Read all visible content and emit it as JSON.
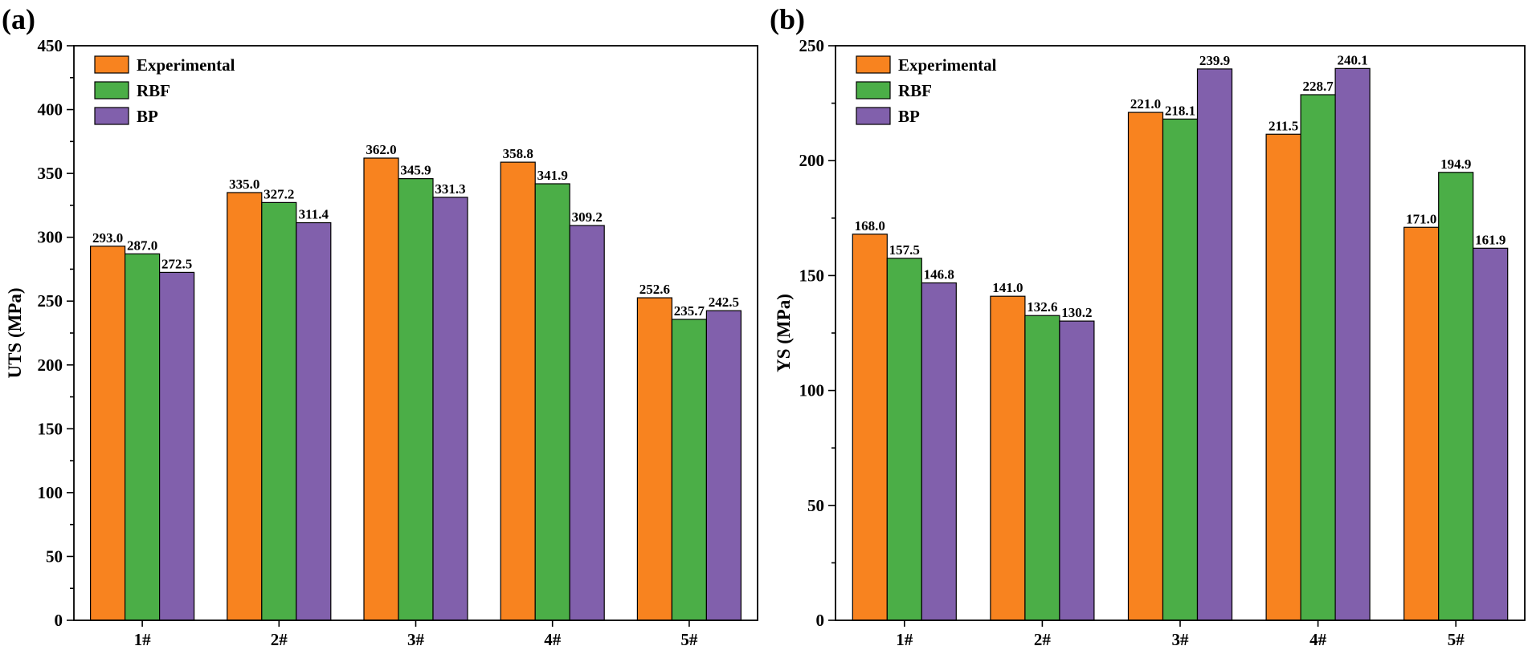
{
  "chart_data": [
    {
      "type": "bar",
      "panel_label": "(a)",
      "ylabel": "UTS (MPa)",
      "xlabel": "",
      "ylim": [
        0,
        450
      ],
      "yticks": [
        "0",
        "50",
        "100",
        "150",
        "200",
        "250",
        "300",
        "350",
        "400",
        "450"
      ],
      "categories": [
        "1#",
        "2#",
        "3#",
        "4#",
        "5#"
      ],
      "legend_position": "top-left",
      "series": [
        {
          "name": "Experimental",
          "color": "#F8831F",
          "values": [
            293.0,
            335.0,
            362.0,
            358.8,
            252.6
          ],
          "labels": [
            "293.0",
            "335.0",
            "362.0",
            "358.8",
            "252.6"
          ]
        },
        {
          "name": "RBF",
          "color": "#4BAE47",
          "values": [
            287.0,
            327.2,
            345.9,
            341.9,
            235.7
          ],
          "labels": [
            "287.0",
            "327.2",
            "345.9",
            "341.9",
            "235.7"
          ]
        },
        {
          "name": "BP",
          "color": "#8160AC",
          "values": [
            272.5,
            311.4,
            331.3,
            309.2,
            242.5
          ],
          "labels": [
            "272.5",
            "311.4",
            "331.3",
            "309.2",
            "242.5"
          ]
        }
      ]
    },
    {
      "type": "bar",
      "panel_label": "(b)",
      "ylabel": "YS (MPa)",
      "xlabel": "",
      "ylim": [
        0,
        250
      ],
      "yticks": [
        "0",
        "50",
        "100",
        "150",
        "200",
        "250"
      ],
      "categories": [
        "1#",
        "2#",
        "3#",
        "4#",
        "5#"
      ],
      "legend_position": "top-left",
      "series": [
        {
          "name": "Experimental",
          "color": "#F8831F",
          "values": [
            168.0,
            141.0,
            221.0,
            211.5,
            171.0
          ],
          "labels": [
            "168.0",
            "141.0",
            "221.0",
            "211.5",
            "171.0"
          ]
        },
        {
          "name": "RBF",
          "color": "#4BAE47",
          "values": [
            157.5,
            132.6,
            218.1,
            228.7,
            194.9
          ],
          "labels": [
            "157.5",
            "132.6",
            "218.1",
            "228.7",
            "194.9"
          ]
        },
        {
          "name": "BP",
          "color": "#8160AC",
          "values": [
            146.8,
            130.2,
            239.9,
            240.1,
            161.9
          ],
          "labels": [
            "146.8",
            "130.2",
            "239.9",
            "240.1",
            "161.9"
          ]
        }
      ]
    }
  ]
}
